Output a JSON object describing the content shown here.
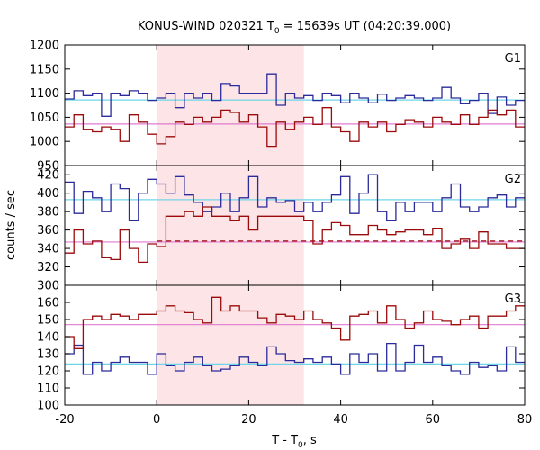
{
  "chart_data": {
    "type": "line",
    "title_main": "KONUS-WIND 020321 T",
    "title_sub": "0",
    "title_rest": " = 15639s UT (04:20:39.000)",
    "xlabel_main": "T - T",
    "xlabel_sub": "0",
    "xlabel_rest": ", s",
    "ylabel": "counts / sec",
    "xlim": [
      -20,
      80
    ],
    "x_ticks": [
      "-20",
      "0",
      "20",
      "40",
      "60",
      "80"
    ],
    "shaded_interval": [
      0,
      32
    ],
    "colors": {
      "blue_series": "#2b2b9b",
      "red_series": "#9b0b0b",
      "cyan_line": "#6fd6e8",
      "pink_line": "#e07ad0",
      "shade": "#fde4e6"
    },
    "panels": [
      {
        "label": "G1",
        "ylim": [
          950,
          1200
        ],
        "y_ticks": [
          "950",
          "1000",
          "1050",
          "1100",
          "1150",
          "1200"
        ],
        "bin_edges": [
          -20,
          -18,
          -16,
          -14,
          -12,
          -10,
          -8,
          -6,
          -4,
          -2,
          0,
          2,
          4,
          6,
          8,
          10,
          12,
          14,
          16,
          18,
          20,
          22,
          24,
          26,
          28,
          30,
          32,
          34,
          36,
          38,
          40,
          42,
          44,
          46,
          48,
          50,
          52,
          54,
          56,
          58,
          60,
          62,
          64,
          66,
          68,
          70,
          72,
          74,
          76,
          78,
          80
        ],
        "series": [
          {
            "name": "",
            "values": [
              1088,
              1105,
              1095,
              1100,
              1052,
              1100,
              1095,
              1105,
              1100,
              1085,
              1090,
              1100,
              1070,
              1100,
              1090,
              1100,
              1085,
              1120,
              1115,
              1100,
              1100,
              1100,
              1140,
              1075,
              1100,
              1090,
              1095,
              1085,
              1100,
              1095,
              1080,
              1100,
              1090,
              1080,
              1098,
              1085,
              1090,
              1095,
              1090,
              1085,
              1090,
              1112,
              1090,
              1078,
              1085,
              1100,
              1058,
              1092,
              1075,
              1085
            ]
          },
          {
            "name": "",
            "values": [
              1030,
              1055,
              1025,
              1020,
              1030,
              1025,
              1000,
              1055,
              1040,
              1015,
              995,
              1010,
              1040,
              1035,
              1050,
              1040,
              1050,
              1065,
              1060,
              1040,
              1055,
              1030,
              990,
              1040,
              1025,
              1040,
              1050,
              1035,
              1070,
              1030,
              1020,
              1000,
              1040,
              1030,
              1040,
              1020,
              1035,
              1045,
              1040,
              1030,
              1050,
              1040,
              1035,
              1055,
              1035,
              1050,
              1065,
              1055,
              1065,
              1030
            ]
          }
        ],
        "background_levels": [
          1086,
          1036
        ],
        "dashed_segment": null
      },
      {
        "label": "G2",
        "ylim": [
          300,
          430
        ],
        "y_ticks": [
          "300",
          "320",
          "340",
          "360",
          "380",
          "400",
          "420"
        ],
        "bin_edges": [
          -20,
          -18,
          -16,
          -14,
          -12,
          -10,
          -8,
          -6,
          -4,
          -2,
          0,
          2,
          4,
          6,
          8,
          10,
          12,
          14,
          16,
          18,
          20,
          22,
          24,
          26,
          28,
          30,
          32,
          34,
          36,
          38,
          40,
          42,
          44,
          46,
          48,
          50,
          52,
          54,
          56,
          58,
          60,
          62,
          64,
          66,
          68,
          70,
          72,
          74,
          76,
          78,
          80
        ],
        "series": [
          {
            "name": "",
            "values": [
              412,
              378,
              402,
              395,
              380,
              410,
              405,
              370,
              400,
              415,
              410,
              400,
              418,
              398,
              390,
              380,
              385,
              400,
              380,
              395,
              418,
              385,
              395,
              390,
              392,
              380,
              390,
              380,
              390,
              398,
              418,
              378,
              400,
              420,
              380,
              370,
              390,
              380,
              390,
              390,
              380,
              395,
              410,
              385,
              380,
              385,
              395,
              398,
              385,
              395
            ]
          },
          {
            "name": "",
            "values": [
              335,
              360,
              345,
              348,
              330,
              328,
              360,
              340,
              325,
              345,
              342,
              375,
              375,
              380,
              375,
              385,
              375,
              375,
              370,
              375,
              360,
              375,
              375,
              375,
              375,
              375,
              370,
              345,
              360,
              368,
              365,
              355,
              355,
              365,
              360,
              355,
              358,
              360,
              360,
              355,
              362,
              340,
              345,
              350,
              340,
              358,
              345,
              345,
              340,
              340
            ]
          }
        ],
        "background_levels": [
          393,
          347
        ],
        "dashed_segment": {
          "x": [
            0,
            80
          ],
          "y": 348
        }
      },
      {
        "label": "G3",
        "ylim": [
          100,
          170
        ],
        "y_ticks": [
          "100",
          "110",
          "120",
          "130",
          "140",
          "150",
          "160"
        ],
        "bin_edges": [
          -20,
          -18,
          -16,
          -14,
          -12,
          -10,
          -8,
          -6,
          -4,
          -2,
          0,
          2,
          4,
          6,
          8,
          10,
          12,
          14,
          16,
          18,
          20,
          22,
          24,
          26,
          28,
          30,
          32,
          34,
          36,
          38,
          40,
          42,
          44,
          46,
          48,
          50,
          52,
          54,
          56,
          58,
          60,
          62,
          64,
          66,
          68,
          70,
          72,
          74,
          76,
          78,
          80
        ],
        "series": [
          {
            "name": "",
            "values": [
              130,
              135,
              118,
              125,
              120,
              125,
              128,
              125,
              125,
              118,
              130,
              123,
              120,
              125,
              128,
              123,
              120,
              121,
              123,
              128,
              125,
              123,
              134,
              130,
              126,
              125,
              127,
              125,
              128,
              124,
              118,
              130,
              125,
              130,
              120,
              136,
              120,
              125,
              135,
              125,
              128,
              123,
              120,
              118,
              125,
              122,
              123,
              120,
              134,
              125
            ]
          },
          {
            "name": "",
            "values": [
              140,
              133,
              150,
              152,
              150,
              153,
              152,
              150,
              153,
              153,
              155,
              158,
              155,
              154,
              150,
              148,
              163,
              155,
              158,
              155,
              155,
              151,
              148,
              153,
              152,
              150,
              155,
              150,
              148,
              145,
              138,
              152,
              153,
              155,
              148,
              158,
              150,
              145,
              148,
              155,
              150,
              149,
              147,
              150,
              152,
              145,
              152,
              152,
              155,
              158
            ]
          }
        ],
        "background_levels": [
          124,
          147
        ],
        "dashed_segment": null
      }
    ]
  }
}
